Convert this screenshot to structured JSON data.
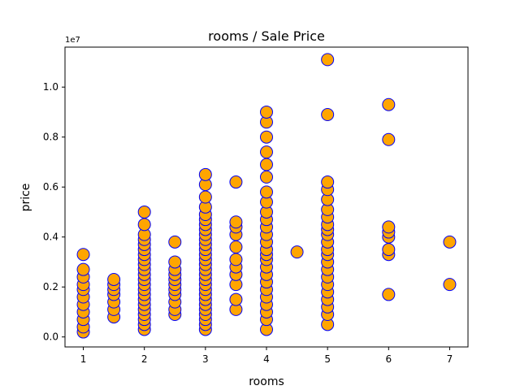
{
  "chart_data": {
    "type": "scatter",
    "title": "rooms / Sale Price",
    "xlabel": "rooms",
    "ylabel": "price",
    "y_offset_label": "1e7",
    "xlim": [
      0.7,
      7.3
    ],
    "ylim": [
      -0.04,
      1.16
    ],
    "xticks": [
      1,
      2,
      3,
      4,
      5,
      6,
      7
    ],
    "xtick_labels": [
      "1",
      "2",
      "3",
      "4",
      "5",
      "6",
      "7"
    ],
    "yticks": [
      0.0,
      0.2,
      0.4,
      0.6,
      0.8,
      1.0
    ],
    "ytick_labels": [
      "0.0",
      "0.2",
      "0.4",
      "0.6",
      "0.8",
      "1.0"
    ],
    "grid": false,
    "marker_fill": "#ffa500",
    "marker_edge": "#0000ff",
    "series": [
      {
        "points": [
          [
            1,
            0.02
          ],
          [
            1,
            0.04
          ],
          [
            1,
            0.07
          ],
          [
            1,
            0.1
          ],
          [
            1,
            0.13
          ],
          [
            1,
            0.16
          ],
          [
            1,
            0.19
          ],
          [
            1,
            0.21
          ],
          [
            1,
            0.24
          ],
          [
            1,
            0.27
          ],
          [
            1,
            0.33
          ],
          [
            1.5,
            0.08
          ],
          [
            1.5,
            0.11
          ],
          [
            1.5,
            0.14
          ],
          [
            1.5,
            0.17
          ],
          [
            1.5,
            0.19
          ],
          [
            1.5,
            0.21
          ],
          [
            1.5,
            0.23
          ],
          [
            2,
            0.03
          ],
          [
            2,
            0.05
          ],
          [
            2,
            0.07
          ],
          [
            2,
            0.09
          ],
          [
            2,
            0.11
          ],
          [
            2,
            0.13
          ],
          [
            2,
            0.15
          ],
          [
            2,
            0.17
          ],
          [
            2,
            0.19
          ],
          [
            2,
            0.21
          ],
          [
            2,
            0.23
          ],
          [
            2,
            0.25
          ],
          [
            2,
            0.27
          ],
          [
            2,
            0.29
          ],
          [
            2,
            0.31
          ],
          [
            2,
            0.33
          ],
          [
            2,
            0.35
          ],
          [
            2,
            0.37
          ],
          [
            2,
            0.39
          ],
          [
            2,
            0.41
          ],
          [
            2,
            0.45
          ],
          [
            2,
            0.5
          ],
          [
            2.5,
            0.09
          ],
          [
            2.5,
            0.11
          ],
          [
            2.5,
            0.14
          ],
          [
            2.5,
            0.17
          ],
          [
            2.5,
            0.19
          ],
          [
            2.5,
            0.21
          ],
          [
            2.5,
            0.23
          ],
          [
            2.5,
            0.25
          ],
          [
            2.5,
            0.27
          ],
          [
            2.5,
            0.3
          ],
          [
            2.5,
            0.38
          ],
          [
            3,
            0.03
          ],
          [
            3,
            0.05
          ],
          [
            3,
            0.07
          ],
          [
            3,
            0.09
          ],
          [
            3,
            0.11
          ],
          [
            3,
            0.13
          ],
          [
            3,
            0.15
          ],
          [
            3,
            0.17
          ],
          [
            3,
            0.19
          ],
          [
            3,
            0.21
          ],
          [
            3,
            0.23
          ],
          [
            3,
            0.25
          ],
          [
            3,
            0.27
          ],
          [
            3,
            0.29
          ],
          [
            3,
            0.31
          ],
          [
            3,
            0.33
          ],
          [
            3,
            0.35
          ],
          [
            3,
            0.37
          ],
          [
            3,
            0.39
          ],
          [
            3,
            0.41
          ],
          [
            3,
            0.43
          ],
          [
            3,
            0.45
          ],
          [
            3,
            0.47
          ],
          [
            3,
            0.49
          ],
          [
            3,
            0.52
          ],
          [
            3,
            0.56
          ],
          [
            3,
            0.61
          ],
          [
            3,
            0.65
          ],
          [
            3.5,
            0.11
          ],
          [
            3.5,
            0.15
          ],
          [
            3.5,
            0.21
          ],
          [
            3.5,
            0.25
          ],
          [
            3.5,
            0.28
          ],
          [
            3.5,
            0.31
          ],
          [
            3.5,
            0.36
          ],
          [
            3.5,
            0.41
          ],
          [
            3.5,
            0.44
          ],
          [
            3.5,
            0.46
          ],
          [
            3.5,
            0.62
          ],
          [
            4,
            0.03
          ],
          [
            4,
            0.07
          ],
          [
            4,
            0.1
          ],
          [
            4,
            0.13
          ],
          [
            4,
            0.16
          ],
          [
            4,
            0.19
          ],
          [
            4,
            0.22
          ],
          [
            4,
            0.25
          ],
          [
            4,
            0.28
          ],
          [
            4,
            0.31
          ],
          [
            4,
            0.33
          ],
          [
            4,
            0.35
          ],
          [
            4,
            0.38
          ],
          [
            4,
            0.41
          ],
          [
            4,
            0.44
          ],
          [
            4,
            0.47
          ],
          [
            4,
            0.5
          ],
          [
            4,
            0.54
          ],
          [
            4,
            0.58
          ],
          [
            4,
            0.64
          ],
          [
            4,
            0.69
          ],
          [
            4,
            0.74
          ],
          [
            4,
            0.8
          ],
          [
            4,
            0.86
          ],
          [
            4,
            0.9
          ],
          [
            4.5,
            0.34
          ],
          [
            5,
            0.05
          ],
          [
            5,
            0.09
          ],
          [
            5,
            0.12
          ],
          [
            5,
            0.15
          ],
          [
            5,
            0.18
          ],
          [
            5,
            0.21
          ],
          [
            5,
            0.24
          ],
          [
            5,
            0.27
          ],
          [
            5,
            0.3
          ],
          [
            5,
            0.33
          ],
          [
            5,
            0.35
          ],
          [
            5,
            0.38
          ],
          [
            5,
            0.41
          ],
          [
            5,
            0.43
          ],
          [
            5,
            0.45
          ],
          [
            5,
            0.48
          ],
          [
            5,
            0.51
          ],
          [
            5,
            0.55
          ],
          [
            5,
            0.59
          ],
          [
            5,
            0.62
          ],
          [
            5,
            0.89
          ],
          [
            5,
            1.11
          ],
          [
            6,
            0.17
          ],
          [
            6,
            0.33
          ],
          [
            6,
            0.35
          ],
          [
            6,
            0.4
          ],
          [
            6,
            0.42
          ],
          [
            6,
            0.44
          ],
          [
            6,
            0.79
          ],
          [
            6,
            0.93
          ],
          [
            7,
            0.21
          ],
          [
            7,
            0.38
          ]
        ]
      }
    ]
  }
}
